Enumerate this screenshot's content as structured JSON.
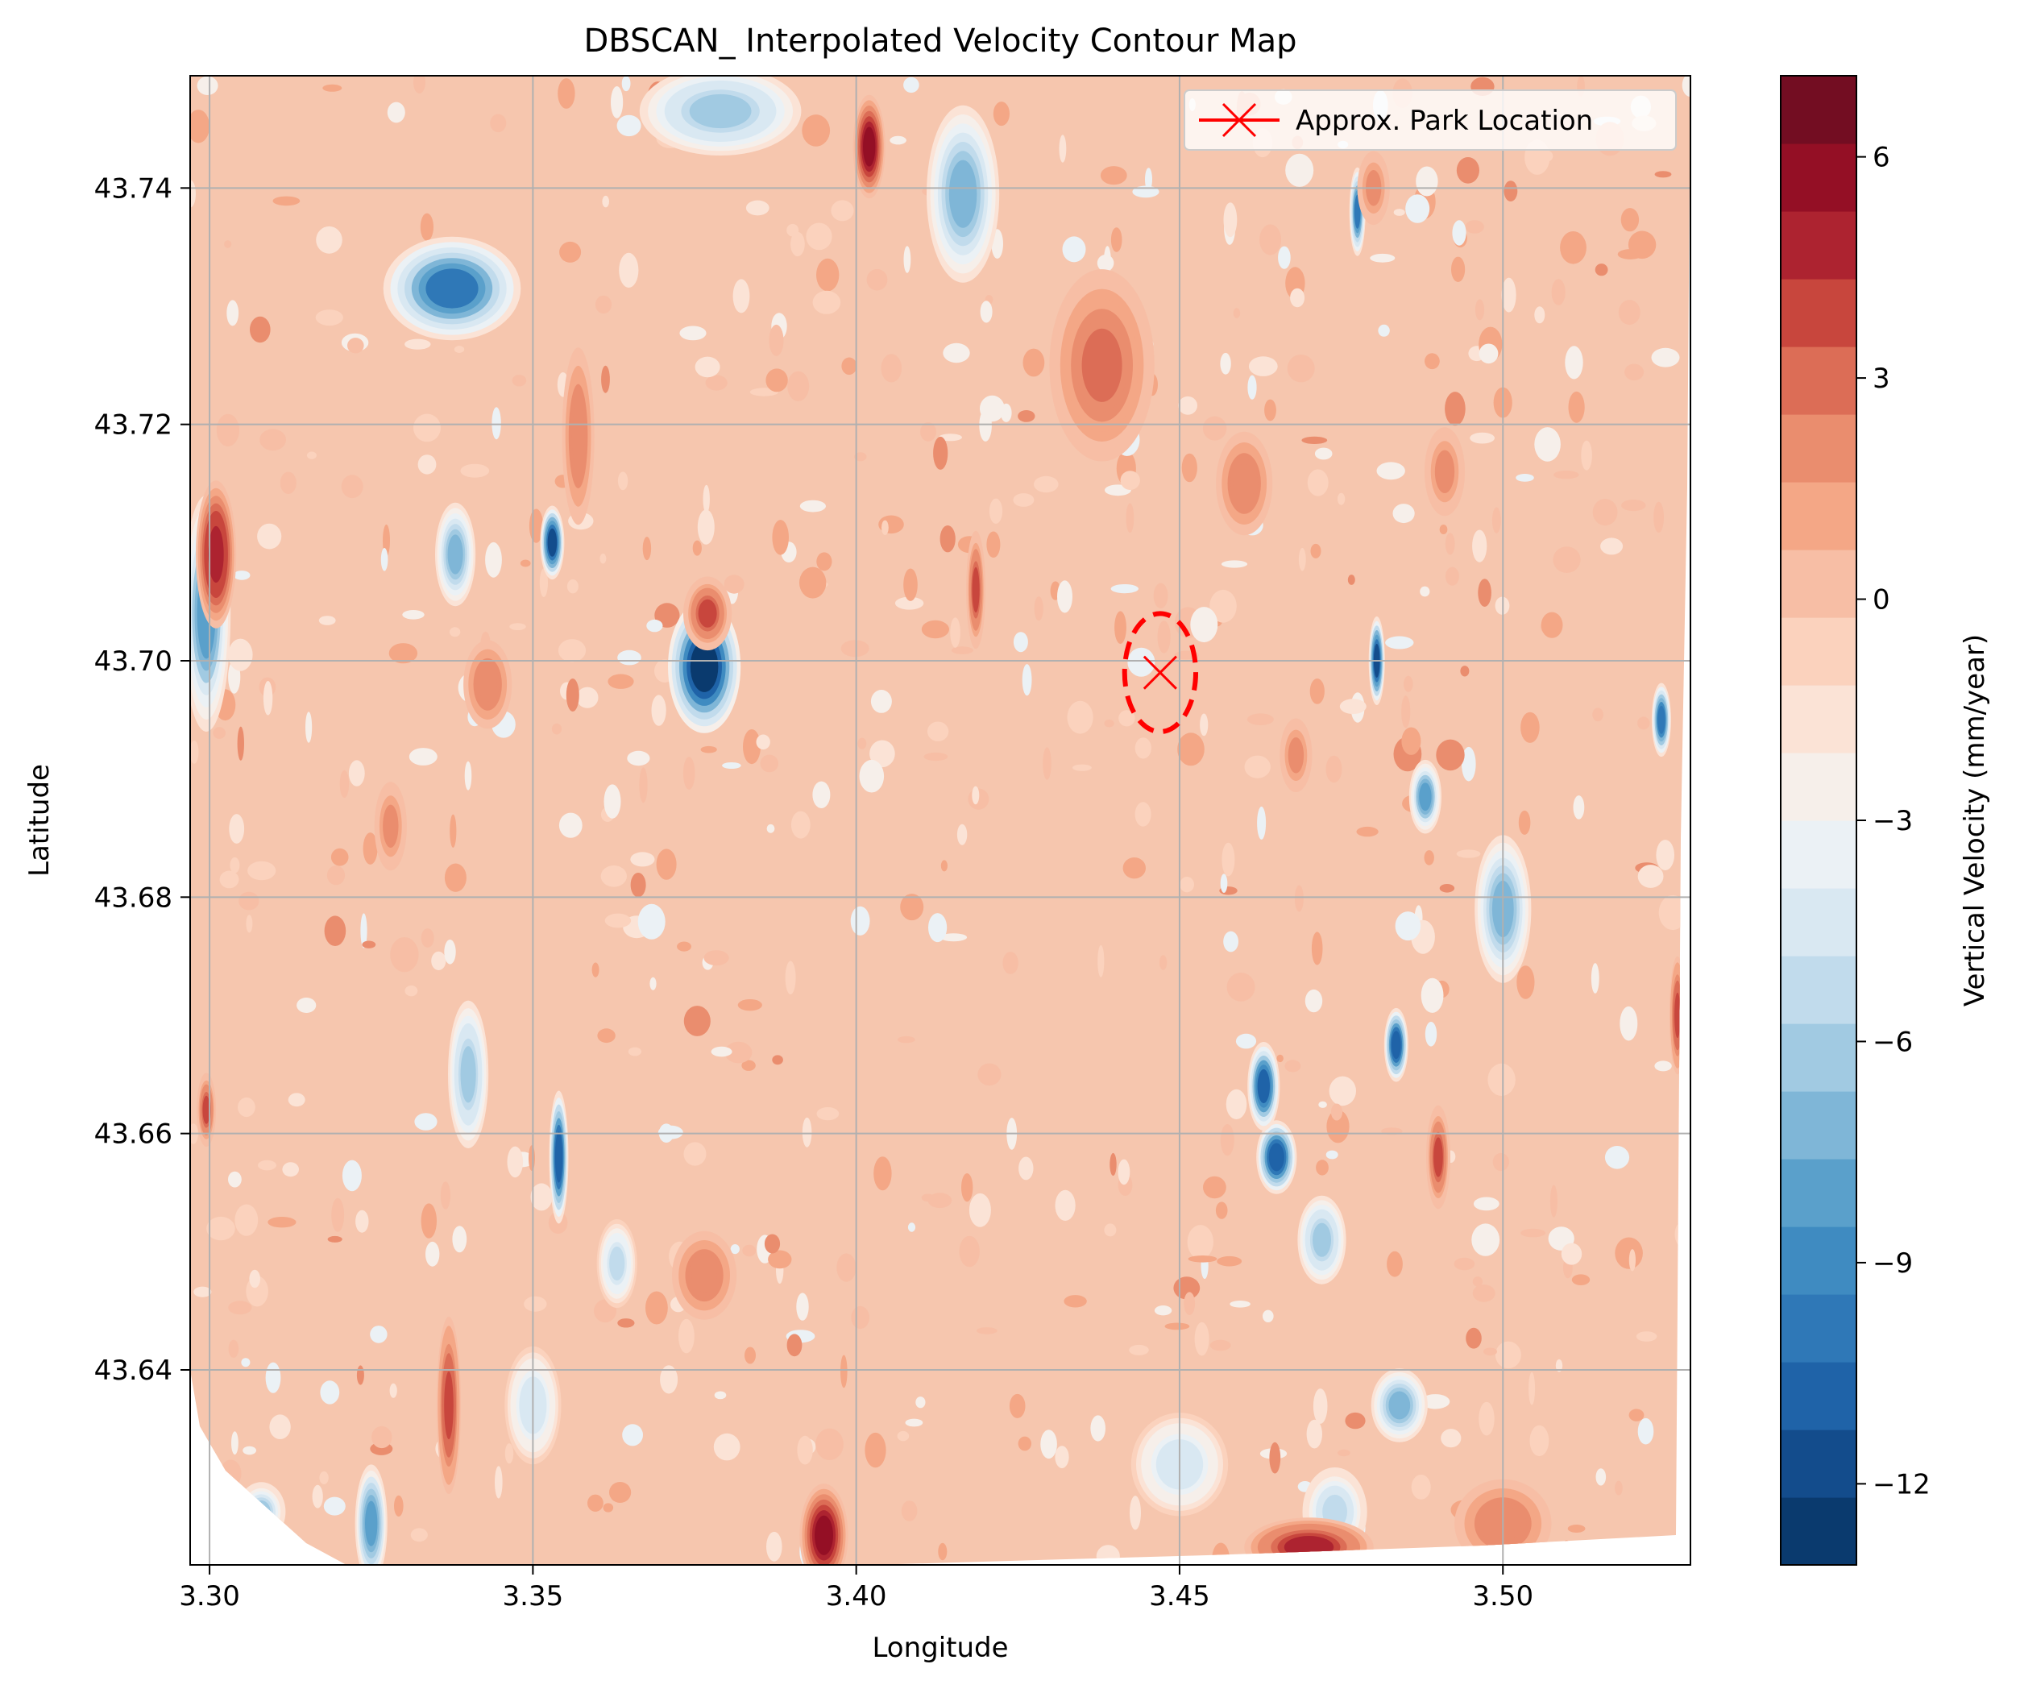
{
  "chart_data": {
    "type": "heatmap",
    "title": "DBSCAN_ Interpolated Velocity Contour Map",
    "xlabel": "Longitude",
    "ylabel": "Latitude",
    "xlim": [
      3.297,
      3.529
    ],
    "ylim": [
      43.6235,
      43.7495
    ],
    "xticks": [
      3.3,
      3.35,
      3.4,
      3.45,
      3.5
    ],
    "xtick_labels": [
      "3.30",
      "3.35",
      "3.40",
      "3.45",
      "3.50"
    ],
    "yticks": [
      43.64,
      43.66,
      43.68,
      43.7,
      43.72,
      43.74
    ],
    "ytick_labels": [
      "43.64",
      "43.66",
      "43.68",
      "43.70",
      "43.72",
      "43.74"
    ],
    "grid": true,
    "colormap": "RdBu_r",
    "colorbar": {
      "label": "Vertical Velocity (mm/year)",
      "range": [
        -13.1,
        7.1
      ],
      "levels": 21,
      "ticks": [
        -12,
        -9,
        -6,
        -3,
        0,
        3,
        6
      ],
      "tick_labels": [
        "−12",
        "−9",
        "−6",
        "−3",
        "0",
        "3",
        "6"
      ],
      "colors": [
        "#0a3a6e",
        "#134c8c",
        "#1f63a8",
        "#2f78b7",
        "#3f8bc1",
        "#5aa0cb",
        "#7fb6d7",
        "#a1cae2",
        "#c1dbec",
        "#d9e8f2",
        "#ebf1f5",
        "#f6efea",
        "#fbe3d6",
        "#fbd2bd",
        "#f7bea5",
        "#f4a786",
        "#ea8d6e",
        "#dc6d56",
        "#c8463d",
        "#ad2330",
        "#940f25",
        "#730d22"
      ]
    },
    "background_level_color": "#f6c6ae",
    "blobs": [
      {
        "x": 3.3375,
        "y": 43.7315,
        "value": -9.5,
        "rx": 0.0085,
        "ry": 0.0035
      },
      {
        "x": 3.3765,
        "y": 43.6995,
        "value": -12.5,
        "rx": 0.0045,
        "ry": 0.0045
      },
      {
        "x": 3.4165,
        "y": 43.7395,
        "value": -7.5,
        "rx": 0.0045,
        "ry": 0.006
      },
      {
        "x": 3.379,
        "y": 43.7465,
        "value": -6.5,
        "rx": 0.01,
        "ry": 0.003
      },
      {
        "x": 3.354,
        "y": 43.658,
        "value": -11.0,
        "rx": 0.0012,
        "ry": 0.0045
      },
      {
        "x": 3.353,
        "y": 43.71,
        "value": -11.5,
        "rx": 0.0015,
        "ry": 0.0025
      },
      {
        "x": 3.35,
        "y": 43.637,
        "value": -4.5,
        "rx": 0.0035,
        "ry": 0.004
      },
      {
        "x": 3.325,
        "y": 43.627,
        "value": -8.5,
        "rx": 0.002,
        "ry": 0.004
      },
      {
        "x": 3.308,
        "y": 43.628,
        "value": -6.0,
        "rx": 0.003,
        "ry": 0.002
      },
      {
        "x": 3.2995,
        "y": 43.704,
        "value": -8.0,
        "rx": 0.003,
        "ry": 0.008
      },
      {
        "x": 3.338,
        "y": 43.709,
        "value": -7.0,
        "rx": 0.0025,
        "ry": 0.0035
      },
      {
        "x": 3.34,
        "y": 43.665,
        "value": -6.5,
        "rx": 0.0025,
        "ry": 0.005
      },
      {
        "x": 3.465,
        "y": 43.658,
        "value": -11.0,
        "rx": 0.0025,
        "ry": 0.0025
      },
      {
        "x": 3.463,
        "y": 43.664,
        "value": -10.5,
        "rx": 0.002,
        "ry": 0.003
      },
      {
        "x": 3.4835,
        "y": 43.6675,
        "value": -11.0,
        "rx": 0.0015,
        "ry": 0.0025
      },
      {
        "x": 3.4805,
        "y": 43.7,
        "value": -11.5,
        "rx": 0.001,
        "ry": 0.003
      },
      {
        "x": 3.488,
        "y": 43.6885,
        "value": -8.0,
        "rx": 0.002,
        "ry": 0.0025
      },
      {
        "x": 3.5,
        "y": 43.679,
        "value": -7.5,
        "rx": 0.0035,
        "ry": 0.005
      },
      {
        "x": 3.5245,
        "y": 43.695,
        "value": -10.0,
        "rx": 0.0012,
        "ry": 0.0025
      },
      {
        "x": 3.484,
        "y": 43.637,
        "value": -7.0,
        "rx": 0.0035,
        "ry": 0.0025
      },
      {
        "x": 3.474,
        "y": 43.628,
        "value": -5.5,
        "rx": 0.004,
        "ry": 0.003
      },
      {
        "x": 3.45,
        "y": 43.632,
        "value": -4.5,
        "rx": 0.006,
        "ry": 0.0035
      },
      {
        "x": 3.363,
        "y": 43.649,
        "value": -5.0,
        "rx": 0.0025,
        "ry": 0.003
      },
      {
        "x": 3.472,
        "y": 43.651,
        "value": -6.5,
        "rx": 0.003,
        "ry": 0.003
      },
      {
        "x": 3.4775,
        "y": 43.738,
        "value": -9.5,
        "rx": 0.001,
        "ry": 0.003
      },
      {
        "x": 3.395,
        "y": 43.626,
        "value": 5.5,
        "rx": 0.003,
        "ry": 0.0035
      },
      {
        "x": 3.402,
        "y": 43.7435,
        "value": 5.5,
        "rx": 0.002,
        "ry": 0.0035
      },
      {
        "x": 3.301,
        "y": 43.709,
        "value": 5.0,
        "rx": 0.0025,
        "ry": 0.005
      },
      {
        "x": 3.438,
        "y": 43.725,
        "value": 3.0,
        "rx": 0.0065,
        "ry": 0.0065
      },
      {
        "x": 3.46,
        "y": 43.715,
        "value": 2.5,
        "rx": 0.0035,
        "ry": 0.0035
      },
      {
        "x": 3.337,
        "y": 43.637,
        "value": 4.0,
        "rx": 0.0015,
        "ry": 0.006
      },
      {
        "x": 3.357,
        "y": 43.719,
        "value": 2.5,
        "rx": 0.002,
        "ry": 0.006
      },
      {
        "x": 3.377,
        "y": 43.704,
        "value": 3.5,
        "rx": 0.003,
        "ry": 0.0025
      },
      {
        "x": 3.3765,
        "y": 43.648,
        "value": 2.5,
        "rx": 0.004,
        "ry": 0.003
      },
      {
        "x": 3.47,
        "y": 43.625,
        "value": 4.5,
        "rx": 0.008,
        "ry": 0.002
      },
      {
        "x": 3.5,
        "y": 43.627,
        "value": 2.5,
        "rx": 0.006,
        "ry": 0.003
      },
      {
        "x": 3.4185,
        "y": 43.706,
        "value": 3.5,
        "rx": 0.0012,
        "ry": 0.004
      },
      {
        "x": 3.343,
        "y": 43.698,
        "value": 2.5,
        "rx": 0.003,
        "ry": 0.003
      },
      {
        "x": 3.48,
        "y": 43.74,
        "value": 2.0,
        "rx": 0.002,
        "ry": 0.0025
      },
      {
        "x": 3.49,
        "y": 43.658,
        "value": 3.5,
        "rx": 0.0015,
        "ry": 0.0035
      },
      {
        "x": 3.491,
        "y": 43.716,
        "value": 2.0,
        "rx": 0.0025,
        "ry": 0.003
      },
      {
        "x": 3.468,
        "y": 43.692,
        "value": 2.0,
        "rx": 0.002,
        "ry": 0.0025
      },
      {
        "x": 3.328,
        "y": 43.686,
        "value": 2.0,
        "rx": 0.002,
        "ry": 0.003
      },
      {
        "x": 3.527,
        "y": 43.67,
        "value": 4.0,
        "rx": 0.001,
        "ry": 0.004
      },
      {
        "x": 3.2995,
        "y": 43.662,
        "value": 3.5,
        "rx": 0.0012,
        "ry": 0.0025
      }
    ],
    "speckles": {
      "count": 640,
      "seed": 7,
      "value_range": [
        -3.5,
        2.0
      ]
    },
    "legend": {
      "position": "upper right",
      "entries": [
        "Approx. Park Location"
      ]
    },
    "marker": {
      "label": "Approx. Park Location",
      "x": 3.447,
      "y": 43.699,
      "color": "#ff0000",
      "symbol": "x"
    },
    "ellipse": {
      "cx": 3.447,
      "cy": 43.699,
      "rx": 0.0055,
      "ry": 0.005,
      "color": "#ff0000",
      "style": "dashed"
    }
  }
}
